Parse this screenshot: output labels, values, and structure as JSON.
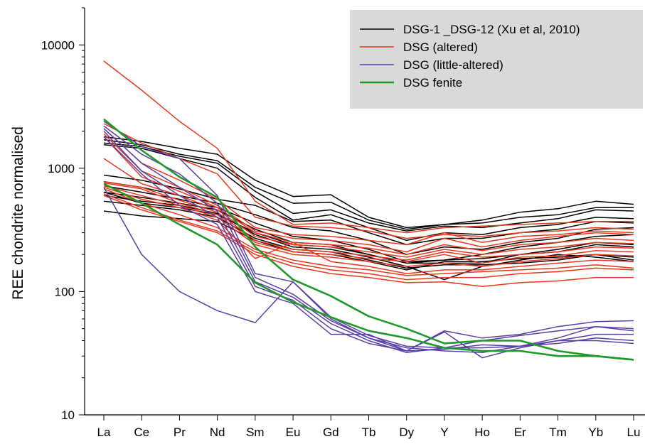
{
  "chart_data": {
    "type": "line",
    "title": "",
    "xlabel": "",
    "ylabel": "REE chondrite normalised",
    "yscale": "log",
    "ylim": [
      10,
      20000
    ],
    "y_ticks": [
      "10",
      "100",
      "1000",
      "10000"
    ],
    "grid": false,
    "legend_position": "top-right",
    "categories": [
      "La",
      "Ce",
      "Pr",
      "Nd",
      "Sm",
      "Eu",
      "Gd",
      "Tb",
      "Dy",
      "Y",
      "Ho",
      "Er",
      "Tm",
      "Yb",
      "Lu"
    ],
    "legend": [
      {
        "label": "DSG-1 _DSG-12 (Xu et al, 2010)",
        "color": "#000000"
      },
      {
        "label": "DSG (altered)",
        "color": "#e8381f"
      },
      {
        "label": "DSG (little-altered)",
        "color": "#5a3fa8"
      },
      {
        "label": "DSG fenite",
        "color": "#1f9a2a"
      }
    ],
    "groups": [
      {
        "group": "DSG-1 _DSG-12 (Xu et al, 2010)",
        "color": "#000000",
        "lines": [
          [
            1800,
            1650,
            1450,
            1300,
            800,
            590,
            610,
            400,
            330,
            350,
            380,
            440,
            470,
            540,
            510
          ],
          [
            1700,
            1550,
            1300,
            1150,
            700,
            520,
            530,
            380,
            320,
            350,
            360,
            400,
            420,
            480,
            480
          ],
          [
            1600,
            1500,
            1250,
            1100,
            650,
            430,
            460,
            360,
            310,
            340,
            330,
            360,
            390,
            460,
            450
          ],
          [
            1550,
            1450,
            1200,
            1000,
            580,
            380,
            420,
            330,
            260,
            300,
            290,
            330,
            350,
            400,
            390
          ],
          [
            880,
            800,
            680,
            560,
            500,
            370,
            380,
            300,
            240,
            270,
            270,
            300,
            320,
            370,
            360
          ],
          [
            780,
            700,
            600,
            520,
            420,
            330,
            310,
            260,
            200,
            230,
            220,
            250,
            270,
            320,
            330
          ],
          [
            720,
            640,
            560,
            480,
            360,
            280,
            260,
            220,
            175,
            180,
            200,
            230,
            250,
            280,
            290
          ],
          [
            640,
            580,
            520,
            460,
            320,
            250,
            240,
            200,
            170,
            170,
            170,
            200,
            220,
            250,
            240
          ],
          [
            600,
            540,
            500,
            430,
            290,
            230,
            220,
            190,
            160,
            125,
            160,
            180,
            200,
            190,
            175
          ],
          [
            540,
            500,
            460,
            400,
            270,
            220,
            210,
            180,
            155,
            165,
            165,
            170,
            180,
            200,
            180
          ],
          [
            450,
            410,
            390,
            370,
            260,
            210,
            200,
            175,
            150,
            175,
            175,
            185,
            190,
            200,
            190
          ],
          [
            640,
            520,
            480,
            420,
            300,
            240,
            230,
            200,
            170,
            180,
            185,
            200,
            210,
            240,
            230
          ]
        ]
      },
      {
        "group": "DSG (altered)",
        "color": "#e8381f",
        "lines": [
          [
            7400,
            4300,
            2400,
            1450,
            540,
            350,
            360,
            330,
            300,
            330,
            340,
            350,
            360,
            370,
            370
          ],
          [
            2300,
            1600,
            1200,
            900,
            400,
            340,
            330,
            310,
            270,
            290,
            280,
            300,
            310,
            330,
            320
          ],
          [
            2100,
            1100,
            800,
            560,
            330,
            290,
            280,
            260,
            240,
            300,
            250,
            280,
            290,
            310,
            300
          ],
          [
            1900,
            950,
            700,
            500,
            310,
            270,
            260,
            240,
            210,
            270,
            230,
            260,
            280,
            300,
            290
          ],
          [
            1800,
            850,
            650,
            480,
            300,
            250,
            240,
            225,
            200,
            240,
            215,
            240,
            250,
            270,
            260
          ],
          [
            1200,
            750,
            600,
            460,
            280,
            240,
            230,
            210,
            190,
            220,
            200,
            220,
            230,
            250,
            245
          ],
          [
            780,
            700,
            550,
            440,
            260,
            220,
            210,
            195,
            180,
            210,
            190,
            200,
            210,
            230,
            225
          ],
          [
            760,
            680,
            520,
            420,
            250,
            210,
            200,
            185,
            175,
            200,
            170,
            190,
            195,
            215,
            210
          ],
          [
            720,
            600,
            500,
            400,
            240,
            200,
            190,
            175,
            160,
            170,
            160,
            175,
            185,
            200,
            195
          ],
          [
            700,
            560,
            480,
            380,
            185,
            250,
            175,
            160,
            140,
            150,
            150,
            160,
            170,
            180,
            175
          ],
          [
            680,
            520,
            420,
            330,
            220,
            180,
            160,
            150,
            135,
            140,
            145,
            150,
            155,
            165,
            155
          ],
          [
            620,
            480,
            380,
            310,
            210,
            170,
            150,
            140,
            125,
            130,
            130,
            140,
            145,
            155,
            150
          ],
          [
            600,
            460,
            370,
            300,
            200,
            160,
            140,
            130,
            118,
            120,
            110,
            118,
            122,
            130,
            130
          ]
        ]
      },
      {
        "group": "DSG (little-altered)",
        "color": "#5a3fa8",
        "lines": [
          [
            2400,
            1500,
            1200,
            600,
            140,
            120,
            60,
            42,
            35,
            33,
            32,
            36,
            42,
            52,
            48
          ],
          [
            2200,
            1300,
            900,
            520,
            130,
            95,
            58,
            42,
            33,
            34,
            37,
            36,
            40,
            45,
            45
          ],
          [
            2100,
            1100,
            700,
            450,
            120,
            90,
            55,
            40,
            32,
            35,
            35,
            36,
            38,
            42,
            40
          ],
          [
            2000,
            950,
            600,
            400,
            110,
            85,
            50,
            38,
            33,
            48,
            42,
            45,
            52,
            57,
            58
          ],
          [
            1800,
            900,
            500,
            350,
            100,
            80,
            45,
            45,
            33,
            47,
            29,
            35,
            40,
            40,
            38
          ],
          [
            700,
            200,
            100,
            70,
            56,
            120,
            62,
            44,
            36,
            35,
            40,
            44,
            48,
            52,
            50
          ]
        ]
      },
      {
        "group": "DSG fenite",
        "color": "#1f9a2a",
        "lines": [
          [
            2500,
            1400,
            850,
            580,
            230,
            125,
            92,
            63,
            50,
            38,
            40,
            40,
            33,
            30,
            28
          ],
          [
            750,
            520,
            350,
            240,
            118,
            82,
            62,
            48,
            42,
            35,
            33,
            33,
            30,
            30,
            28
          ]
        ]
      }
    ]
  }
}
